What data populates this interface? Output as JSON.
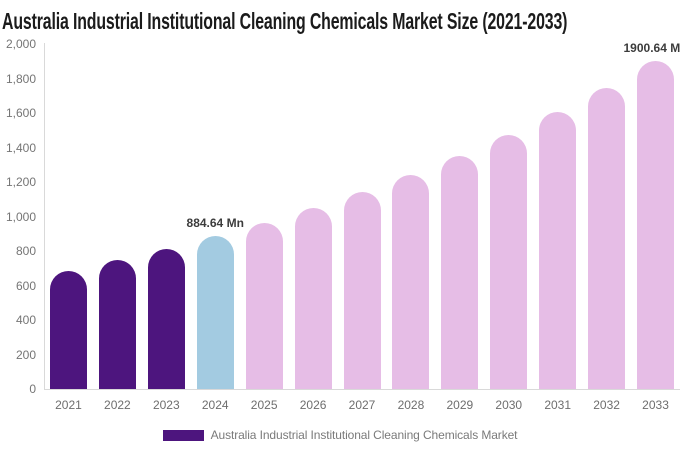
{
  "title": "Australia Industrial Institutional Cleaning Chemicals Market Size (2021-2033)",
  "legend": {
    "swatch_color": "#4d157e",
    "label": "Australia Industrial Institutional Cleaning Chemicals Market"
  },
  "colors": {
    "historical_bar": "#4d157e",
    "current_year_bar": "#a3cbe1",
    "forecast_bar": "#e6bde6",
    "axis_line": "#d9d9d9",
    "tick_text": "#757575",
    "title_text": "#1b1b1b",
    "value_label_text": "#3c3c3c"
  },
  "y_axis": {
    "min": 0,
    "max": 2000,
    "step": 200,
    "tick_labels": [
      "2,000",
      "1,800",
      "1,600",
      "1,400",
      "1,200",
      "1,000",
      "800",
      "600",
      "400",
      "200",
      "0"
    ]
  },
  "chart_data": {
    "type": "bar",
    "title": "Australia Industrial Institutional Cleaning Chemicals Market Size (2021-2033)",
    "xlabel": "",
    "ylabel": "",
    "unit": "Mn",
    "ylim": [
      0,
      2000
    ],
    "grid": false,
    "legend_position": "bottom",
    "categories": [
      "2021",
      "2022",
      "2023",
      "2024",
      "2025",
      "2026",
      "2027",
      "2028",
      "2029",
      "2030",
      "2031",
      "2032",
      "2033"
    ],
    "values": [
      686,
      746,
      813,
      884.64,
      963,
      1049,
      1142,
      1243,
      1353,
      1473,
      1604,
      1746,
      1900.64
    ],
    "points": [
      {
        "category": "2021",
        "value": 686,
        "color": "#4d157e"
      },
      {
        "category": "2022",
        "value": 746,
        "color": "#4d157e"
      },
      {
        "category": "2023",
        "value": 813,
        "color": "#4d157e"
      },
      {
        "category": "2024",
        "value": 884.64,
        "color": "#a3cbe1",
        "label": "884.64 Mn"
      },
      {
        "category": "2025",
        "value": 963,
        "color": "#e6bde6"
      },
      {
        "category": "2026",
        "value": 1049,
        "color": "#e6bde6"
      },
      {
        "category": "2027",
        "value": 1142,
        "color": "#e6bde6"
      },
      {
        "category": "2028",
        "value": 1243,
        "color": "#e6bde6"
      },
      {
        "category": "2029",
        "value": 1353,
        "color": "#e6bde6"
      },
      {
        "category": "2030",
        "value": 1473,
        "color": "#e6bde6"
      },
      {
        "category": "2031",
        "value": 1604,
        "color": "#e6bde6"
      },
      {
        "category": "2032",
        "value": 1746,
        "color": "#e6bde6"
      },
      {
        "category": "2033",
        "value": 1900.64,
        "color": "#e6bde6",
        "label": "1900.64 Mn"
      }
    ],
    "annotations": [
      "884.64 Mn",
      "1900.64 Mn"
    ]
  }
}
